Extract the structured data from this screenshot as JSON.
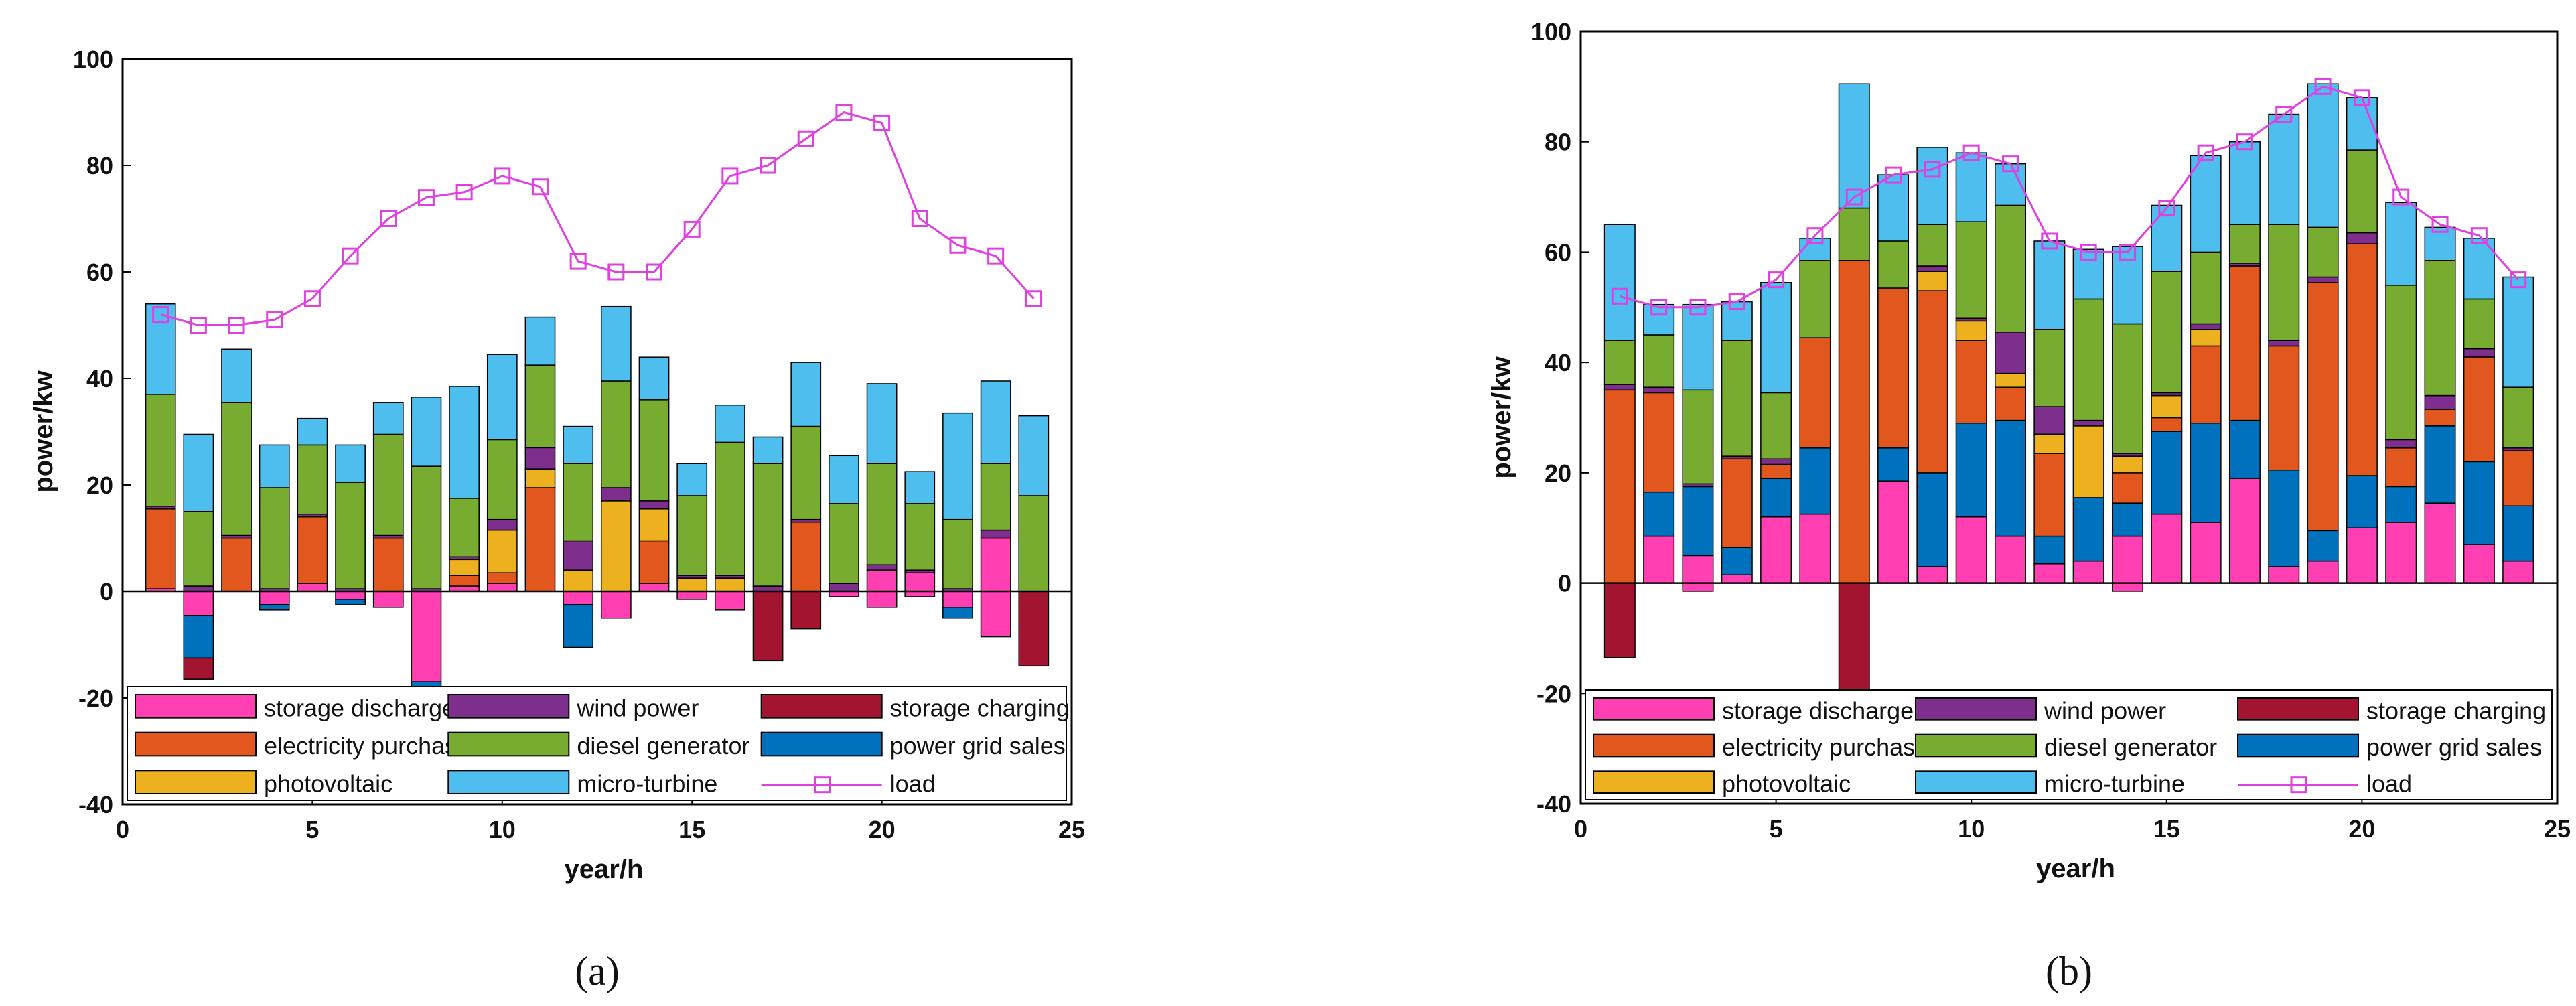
{
  "colors": {
    "storage discharge": "#FF3FB2",
    "electricity purchase": "#E2571E",
    "photovoltaic": "#EDB120",
    "wind power": "#7E2F8E",
    "diesel generator": "#77AC30",
    "micro-turbine": "#4DBEEE",
    "storage charging": "#A2142F",
    "power grid sales": "#0072BD",
    "load": "#E040E0"
  },
  "legend": [
    "storage discharge",
    "wind power",
    "storage charging",
    "electricity purchase",
    "diesel generator",
    "power grid sales",
    "photovoltaic",
    "micro-turbine",
    "load"
  ],
  "chart_data": [
    {
      "type": "bar",
      "stacked": true,
      "caption": "(a)",
      "xlabel": "year/h",
      "ylabel": "power/kw",
      "xlim": [
        0,
        25
      ],
      "ylim": [
        -40,
        100
      ],
      "xticks": [
        0,
        5,
        10,
        15,
        20,
        25
      ],
      "yticks": [
        -40,
        -20,
        0,
        20,
        40,
        60,
        80,
        100
      ],
      "legend_position": "bottom-inside",
      "x": [
        1,
        2,
        3,
        4,
        5,
        6,
        7,
        8,
        9,
        10,
        11,
        12,
        13,
        14,
        15,
        16,
        17,
        18,
        19,
        20,
        21,
        22,
        23,
        24
      ],
      "stack_order": [
        "storage discharge",
        "electricity purchase",
        "photovoltaic",
        "wind power",
        "diesel generator",
        "micro-turbine"
      ],
      "negative_order": [
        "storage discharge",
        "power grid sales",
        "storage charging"
      ],
      "series": [
        {
          "name": "storage discharge",
          "values": [
            0.5,
            0,
            0,
            0,
            1.5,
            0,
            0,
            0,
            1,
            1.5,
            0,
            0,
            0,
            1.5,
            0,
            0,
            0,
            0,
            0,
            4,
            3.5,
            0,
            10,
            0
          ]
        },
        {
          "name": "electricity purchase",
          "values": [
            15,
            0,
            10,
            0,
            12.5,
            0,
            10,
            0,
            2,
            2,
            19.5,
            0,
            0,
            8,
            0,
            0,
            0,
            13,
            0,
            0,
            0,
            0,
            0,
            0
          ]
        },
        {
          "name": "photovoltaic",
          "values": [
            0,
            0,
            0,
            0,
            0,
            0,
            0,
            0,
            3,
            8,
            3.5,
            4,
            17,
            6,
            2.5,
            2.5,
            0,
            0,
            0,
            0,
            0,
            0,
            0,
            0
          ]
        },
        {
          "name": "wind power",
          "values": [
            0.5,
            1,
            0.5,
            0.5,
            0.5,
            0.5,
            0.5,
            0.5,
            0.5,
            2,
            4,
            5.5,
            2.5,
            1.5,
            0.5,
            0.5,
            1,
            0.5,
            1.5,
            1,
            0.5,
            0.5,
            1.5,
            0
          ]
        },
        {
          "name": "diesel generator",
          "values": [
            21,
            14,
            25,
            19,
            13,
            20,
            19,
            23,
            11,
            15,
            15.5,
            14.5,
            20,
            19,
            15,
            25,
            23,
            17.5,
            15,
            19,
            12.5,
            13,
            12.5,
            18
          ]
        },
        {
          "name": "micro-turbine",
          "values": [
            17,
            14.5,
            10,
            8,
            5,
            7,
            6,
            13,
            21,
            16,
            9,
            7,
            14,
            8,
            6,
            7,
            5,
            12,
            9,
            15,
            6,
            20,
            15.5,
            15
          ]
        },
        {
          "name": "power grid sales",
          "values": [
            0,
            -8,
            0,
            -1,
            0,
            -1,
            0,
            -5,
            0,
            2,
            0,
            -8,
            5.5,
            0,
            10,
            8,
            0,
            0,
            10,
            13,
            2,
            -2,
            6,
            0
          ]
        },
        {
          "name": "storage charging",
          "values": [
            0,
            -4,
            0,
            0,
            0,
            0,
            0,
            0,
            0,
            0,
            0,
            0,
            0,
            0,
            0,
            0,
            -13,
            -7,
            0,
            0,
            0,
            0,
            0,
            -14
          ]
        },
        {
          "name": "load",
          "type": "line",
          "values": [
            52,
            50,
            50,
            51,
            55,
            63,
            70,
            74,
            75,
            78,
            76,
            62,
            60,
            60,
            68,
            78,
            80,
            85,
            90,
            88,
            70,
            65,
            63,
            55
          ]
        }
      ],
      "negative_discharge": [
        0,
        -4.5,
        0,
        -2.5,
        0,
        -1.5,
        -3,
        -17,
        0,
        0,
        0,
        -2.5,
        -5,
        0,
        -1.5,
        -3.5,
        0,
        0,
        -1,
        -3,
        -1,
        -3,
        -8.5,
        0
      ]
    },
    {
      "type": "bar",
      "stacked": true,
      "caption": "(b)",
      "xlabel": "year/h",
      "ylabel": "power/kw",
      "xlim": [
        0,
        25
      ],
      "ylim": [
        -40,
        100
      ],
      "xticks": [
        0,
        5,
        10,
        15,
        20,
        25
      ],
      "yticks": [
        -40,
        -20,
        0,
        20,
        40,
        60,
        80,
        100
      ],
      "legend_position": "bottom-inside",
      "x": [
        1,
        2,
        3,
        4,
        5,
        6,
        7,
        8,
        9,
        10,
        11,
        12,
        13,
        14,
        15,
        16,
        17,
        18,
        19,
        20,
        21,
        22,
        23,
        24
      ],
      "stack_order": [
        "storage discharge",
        "power grid sales",
        "electricity purchase",
        "photovoltaic",
        "wind power",
        "diesel generator",
        "micro-turbine"
      ],
      "negative_order": [
        "storage discharge",
        "storage charging"
      ],
      "series": [
        {
          "name": "storage discharge",
          "values": [
            0,
            8.5,
            5,
            1.5,
            12,
            12.5,
            0,
            18.5,
            3,
            12,
            8.5,
            3.5,
            4,
            8.5,
            12.5,
            11,
            19,
            3,
            4,
            10,
            11,
            14.5,
            7,
            4
          ]
        },
        {
          "name": "power grid sales",
          "values": [
            0,
            8,
            12.5,
            5,
            7,
            12,
            0,
            6,
            17,
            17,
            21,
            5,
            11.5,
            6,
            15,
            18,
            10.5,
            17.5,
            5.5,
            9.5,
            6.5,
            14,
            15,
            10
          ]
        },
        {
          "name": "electricity purchase",
          "values": [
            35,
            18,
            0,
            16,
            2.5,
            20,
            58.5,
            29,
            33,
            15,
            6,
            15,
            0,
            5.5,
            2.5,
            14,
            28,
            22.5,
            45,
            42,
            7,
            3,
            19,
            10
          ]
        },
        {
          "name": "photovoltaic",
          "values": [
            0,
            0,
            0,
            0,
            0,
            0,
            0,
            0,
            3.5,
            3.5,
            2.5,
            3.5,
            13,
            3,
            4,
            3,
            0,
            0,
            0,
            0,
            0,
            0,
            0,
            0
          ]
        },
        {
          "name": "wind power",
          "values": [
            1,
            1,
            0.5,
            0.5,
            1,
            0,
            0,
            0,
            1,
            0.5,
            7.5,
            5,
            1,
            0.5,
            0.5,
            1,
            0.5,
            1,
            1,
            2,
            1.5,
            2.5,
            1.5,
            0.5
          ]
        },
        {
          "name": "diesel generator",
          "values": [
            8,
            9.5,
            17,
            21,
            12,
            14,
            9.5,
            8.5,
            7.5,
            17.5,
            23,
            14,
            22,
            23.5,
            22,
            13,
            7,
            21,
            9,
            15,
            28,
            24.5,
            9,
            11
          ]
        },
        {
          "name": "micro-turbine",
          "values": [
            21,
            5.5,
            15.5,
            7,
            20,
            4,
            22.5,
            12,
            14,
            12.5,
            7.5,
            16,
            9,
            14,
            12,
            17.5,
            15,
            20,
            26,
            9.5,
            15,
            6,
            11,
            20
          ]
        },
        {
          "name": "storage charging",
          "values": [
            -13.5,
            0,
            0,
            0,
            0,
            0,
            -22,
            0,
            0,
            0,
            0,
            0,
            0,
            0,
            0,
            0,
            0,
            0,
            0,
            0,
            0,
            0,
            0,
            0
          ]
        },
        {
          "name": "load",
          "type": "line",
          "values": [
            52,
            50,
            50,
            51,
            55,
            63,
            70,
            74,
            75,
            78,
            76,
            62,
            60,
            60,
            68,
            78,
            80,
            85,
            90,
            88,
            70,
            65,
            63,
            55
          ]
        }
      ],
      "negative_discharge": [
        0,
        0,
        -1.5,
        0,
        0,
        0,
        0,
        0,
        0,
        0,
        0,
        0,
        0,
        -1.5,
        0,
        0,
        0,
        0,
        0,
        0,
        0,
        0,
        0,
        0
      ]
    }
  ]
}
